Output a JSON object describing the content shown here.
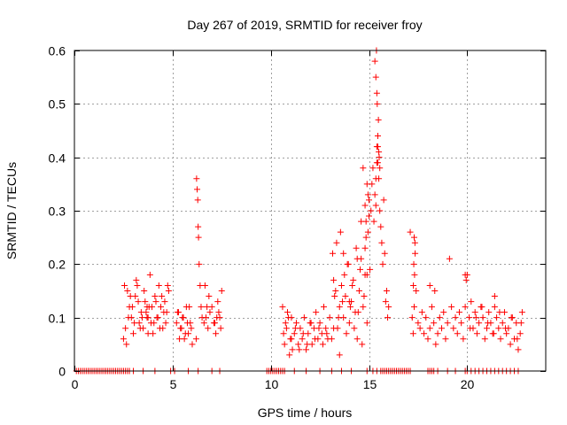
{
  "chart_data": {
    "type": "scatter",
    "title": "Day 267 of 2019, SRMTID for receiver froy",
    "xlabel": "GPS time / hours",
    "ylabel": "SRMTID / TECUs",
    "xlim": [
      0,
      24
    ],
    "ylim": [
      0,
      0.6
    ],
    "xticks": [
      0,
      5,
      10,
      15,
      20
    ],
    "xtick_labels": [
      "0",
      "5",
      "10",
      "15",
      "20"
    ],
    "yticks": [
      0,
      0.1,
      0.2,
      0.3,
      0.4,
      0.5,
      0.6
    ],
    "ytick_labels": [
      "0",
      "0.1",
      "0.2",
      "0.3",
      "0.4",
      "0.5",
      "0.6"
    ],
    "grid": true,
    "marker": "+",
    "color": "#ff0000",
    "series": [
      {
        "name": "SRMTID",
        "x": [
          0.1,
          0.2,
          0.3,
          0.4,
          0.5,
          0.6,
          0.7,
          0.8,
          0.9,
          1.0,
          1.1,
          1.2,
          1.3,
          1.4,
          1.5,
          1.6,
          1.7,
          1.8,
          1.9,
          2.0,
          2.1,
          2.2,
          2.3,
          2.4,
          2.5,
          2.6,
          2.7,
          2.8,
          3.0,
          3.5,
          4.1,
          4.9,
          5.1,
          5.8,
          6.3,
          7.0,
          7.4,
          9.8,
          9.9,
          10.0,
          10.1,
          10.2,
          10.3,
          10.4,
          10.5,
          10.6,
          10.7,
          11.2,
          11.8,
          12.5,
          13.1,
          13.6,
          14.1,
          14.9,
          15.2,
          15.4,
          15.6,
          15.7,
          15.8,
          15.9,
          16.0,
          16.1,
          16.2,
          16.3,
          16.4,
          16.5,
          16.6,
          16.7,
          16.8,
          16.9,
          17.0,
          17.1,
          18.0,
          18.1,
          18.2,
          18.3,
          18.5,
          19.0,
          19.4,
          19.9,
          20.0,
          20.2,
          20.4,
          20.6,
          20.8,
          21.0,
          21.2,
          21.4,
          21.6,
          21.8,
          22.0,
          22.2,
          22.4,
          22.6,
          2.5,
          2.6,
          2.7,
          2.8,
          2.9,
          3.0,
          3.1,
          3.2,
          3.3,
          3.4,
          3.5,
          3.6,
          3.7,
          3.8,
          3.9,
          4.0,
          4.1,
          4.2,
          4.3,
          4.4,
          4.5,
          4.6,
          4.7,
          4.8,
          2.55,
          2.65,
          2.75,
          2.85,
          2.95,
          3.05,
          3.15,
          3.25,
          3.35,
          3.45,
          3.55,
          3.65,
          3.75,
          3.85,
          3.95,
          4.05,
          4.15,
          4.25,
          4.35,
          4.45,
          4.55,
          4.65,
          4.75,
          3.7,
          3.75,
          5.2,
          5.3,
          5.4,
          5.5,
          5.6,
          5.7,
          5.8,
          5.9,
          6.0,
          5.25,
          5.35,
          5.45,
          5.55,
          5.65,
          5.75,
          5.85,
          5.95,
          6.2,
          6.22,
          6.25,
          6.28,
          6.3,
          6.32,
          6.35,
          6.4,
          6.45,
          6.5,
          6.6,
          6.7,
          6.8,
          6.9,
          7.0,
          7.1,
          7.2,
          7.3,
          7.4,
          7.5,
          6.65,
          6.75,
          6.85,
          7.15,
          7.25,
          7.35,
          7.45,
          10.6,
          10.7,
          10.8,
          10.9,
          11.0,
          11.1,
          11.2,
          11.3,
          11.4,
          11.5,
          11.6,
          11.7,
          11.8,
          11.9,
          12.0,
          12.1,
          12.2,
          12.3,
          12.4,
          12.5,
          12.6,
          12.7,
          12.8,
          12.9,
          13.0,
          10.65,
          10.75,
          10.85,
          10.95,
          11.05,
          11.25,
          11.45,
          11.65,
          11.85,
          12.05,
          12.25,
          12.45,
          12.65,
          12.85,
          11.05,
          13.1,
          13.2,
          13.3,
          13.4,
          13.5,
          13.6,
          13.7,
          13.8,
          13.9,
          14.0,
          14.1,
          14.2,
          14.3,
          14.4,
          14.5,
          14.6,
          14.7,
          14.8,
          14.9,
          13.15,
          13.25,
          13.35,
          13.45,
          13.55,
          13.65,
          13.75,
          13.85,
          13.95,
          14.05,
          14.15,
          14.25,
          14.35,
          14.45,
          14.55,
          14.65,
          14.75,
          14.85,
          13.2,
          13.5,
          13.7,
          14.0,
          14.4,
          14.6,
          14.8,
          14.9,
          14.95,
          15.0,
          15.05,
          15.1,
          15.15,
          15.2,
          15.25,
          15.3,
          15.35,
          15.4,
          15.45,
          15.5,
          15.55,
          15.6,
          15.65,
          15.7,
          15.75,
          15.8,
          15.85,
          15.9,
          15.95,
          16.0,
          15.3,
          15.35,
          15.38,
          15.4,
          15.42,
          15.45,
          15.48,
          15.5,
          15.52,
          15.55,
          15.35,
          15.4,
          15.45,
          14.7,
          14.8,
          14.85,
          14.9,
          14.95,
          15.0,
          17.1,
          17.2,
          17.3,
          17.4,
          17.5,
          17.6,
          17.7,
          17.8,
          17.9,
          18.0,
          18.1,
          18.2,
          18.3,
          18.4,
          18.5,
          18.6,
          18.7,
          18.8,
          18.9,
          19.0,
          17.25,
          17.3,
          17.35,
          17.28,
          17.32,
          17.26,
          17.34,
          19.1,
          19.2,
          19.3,
          19.4,
          19.5,
          19.6,
          19.7,
          19.8,
          19.9,
          20.0,
          20.1,
          20.2,
          20.3,
          20.4,
          20.5,
          20.6,
          20.7,
          20.8,
          20.9,
          21.0,
          21.1,
          21.2,
          21.3,
          21.4,
          21.5,
          21.6,
          21.7,
          21.8,
          21.9,
          22.0,
          22.1,
          22.2,
          22.3,
          22.4,
          22.5,
          22.6,
          22.7,
          22.8,
          19.9,
          19.95,
          21.4,
          18.1,
          18.35,
          20.15,
          20.45,
          20.75,
          21.05,
          21.35,
          21.65,
          21.95,
          22.25,
          22.55,
          22.75
        ],
        "y": [
          0,
          0,
          0,
          0,
          0,
          0,
          0,
          0,
          0,
          0,
          0,
          0,
          0,
          0,
          0,
          0,
          0,
          0,
          0,
          0,
          0,
          0,
          0,
          0,
          0,
          0,
          0,
          0,
          0,
          0,
          0,
          0,
          0,
          0,
          0,
          0,
          0,
          0,
          0,
          0,
          0,
          0,
          0,
          0,
          0,
          0,
          0,
          0,
          0,
          0,
          0,
          0,
          0,
          0,
          0,
          0,
          0,
          0,
          0,
          0,
          0,
          0,
          0,
          0,
          0,
          0,
          0,
          0,
          0,
          0,
          0,
          0,
          0,
          0,
          0,
          0,
          0,
          0,
          0,
          0,
          0,
          0,
          0,
          0,
          0,
          0,
          0,
          0,
          0,
          0,
          0,
          0,
          0,
          0,
          0.06,
          0.08,
          0.15,
          0.12,
          0.1,
          0.07,
          0.14,
          0.16,
          0.09,
          0.11,
          0.08,
          0.13,
          0.1,
          0.12,
          0.09,
          0.07,
          0.14,
          0.1,
          0.16,
          0.12,
          0.08,
          0.13,
          0.11,
          0.15,
          0.16,
          0.05,
          0.1,
          0.14,
          0.12,
          0.09,
          0.17,
          0.13,
          0.08,
          0.1,
          0.15,
          0.11,
          0.07,
          0.18,
          0.12,
          0.09,
          0.13,
          0.1,
          0.08,
          0.14,
          0.11,
          0.09,
          0.16,
          0.12,
          0.1,
          0.09,
          0.11,
          0.08,
          0.1,
          0.06,
          0.12,
          0.07,
          0.09,
          0.05,
          0.11,
          0.06,
          0.08,
          0.1,
          0.07,
          0.09,
          0.12,
          0.08,
          0.06,
          0.36,
          0.34,
          0.32,
          0.27,
          0.25,
          0.2,
          0.16,
          0.12,
          0.1,
          0.09,
          0.1,
          0.08,
          0.11,
          0.12,
          0.09,
          0.07,
          0.13,
          0.1,
          0.15,
          0.16,
          0.12,
          0.14,
          0.09,
          0.1,
          0.11,
          0.08,
          0.12,
          0.05,
          0.08,
          0.1,
          0.06,
          0.04,
          0.07,
          0.09,
          0.05,
          0.08,
          0.06,
          0.1,
          0.04,
          0.07,
          0.09,
          0.05,
          0.08,
          0.11,
          0.06,
          0.09,
          0.07,
          0.12,
          0.08,
          0.06,
          0.1,
          0.07,
          0.09,
          0.11,
          0.03,
          0.06,
          0.08,
          0.04,
          0.07,
          0.05,
          0.09,
          0.06,
          0.08,
          0.05,
          0.07,
          0.1,
          0.06,
          0.08,
          0.15,
          0.08,
          0.12,
          0.16,
          0.1,
          0.14,
          0.2,
          0.09,
          0.13,
          0.17,
          0.11,
          0.06,
          0.15,
          0.21,
          0.12,
          0.18,
          0.09,
          0.22,
          0.14,
          0.24,
          0.1,
          0.26,
          0.13,
          0.18,
          0.07,
          0.2,
          0.12,
          0.16,
          0.08,
          0.23,
          0.11,
          0.19,
          0.05,
          0.14,
          0.25,
          0.17,
          0.03,
          0.22,
          0.13,
          0.21,
          0.28,
          0.23,
          0.18,
          0.26,
          0.29,
          0.19,
          0.3,
          0.35,
          0.38,
          0.28,
          0.33,
          0.31,
          0.39,
          0.42,
          0.36,
          0.3,
          0.27,
          0.24,
          0.2,
          0.32,
          0.22,
          0.13,
          0.15,
          0.1,
          0.12,
          0.58,
          0.55,
          0.6,
          0.52,
          0.5,
          0.44,
          0.47,
          0.41,
          0.4,
          0.38,
          0.36,
          0.42,
          0.39,
          0.38,
          0.31,
          0.28,
          0.35,
          0.33,
          0.32,
          0.26,
          0.1,
          0.12,
          0.15,
          0.09,
          0.08,
          0.11,
          0.07,
          0.1,
          0.06,
          0.08,
          0.12,
          0.09,
          0.05,
          0.07,
          0.1,
          0.08,
          0.11,
          0.06,
          0.09,
          0.07,
          0.25,
          0.22,
          0.2,
          0.18,
          0.16,
          0.24,
          0.21,
          0.12,
          0.08,
          0.1,
          0.07,
          0.11,
          0.09,
          0.06,
          0.12,
          0.18,
          0.1,
          0.13,
          0.08,
          0.11,
          0.07,
          0.09,
          0.12,
          0.1,
          0.06,
          0.08,
          0.11,
          0.09,
          0.07,
          0.12,
          0.1,
          0.08,
          0.06,
          0.09,
          0.11,
          0.07,
          0.08,
          0.05,
          0.1,
          0.06,
          0.09,
          0.04,
          0.07,
          0.11,
          0.18,
          0.17,
          0.14,
          0.16,
          0.15,
          0.08,
          0.1,
          0.12,
          0.09,
          0.07,
          0.11,
          0.08,
          0.1,
          0.06,
          0.09
        ]
      }
    ]
  }
}
